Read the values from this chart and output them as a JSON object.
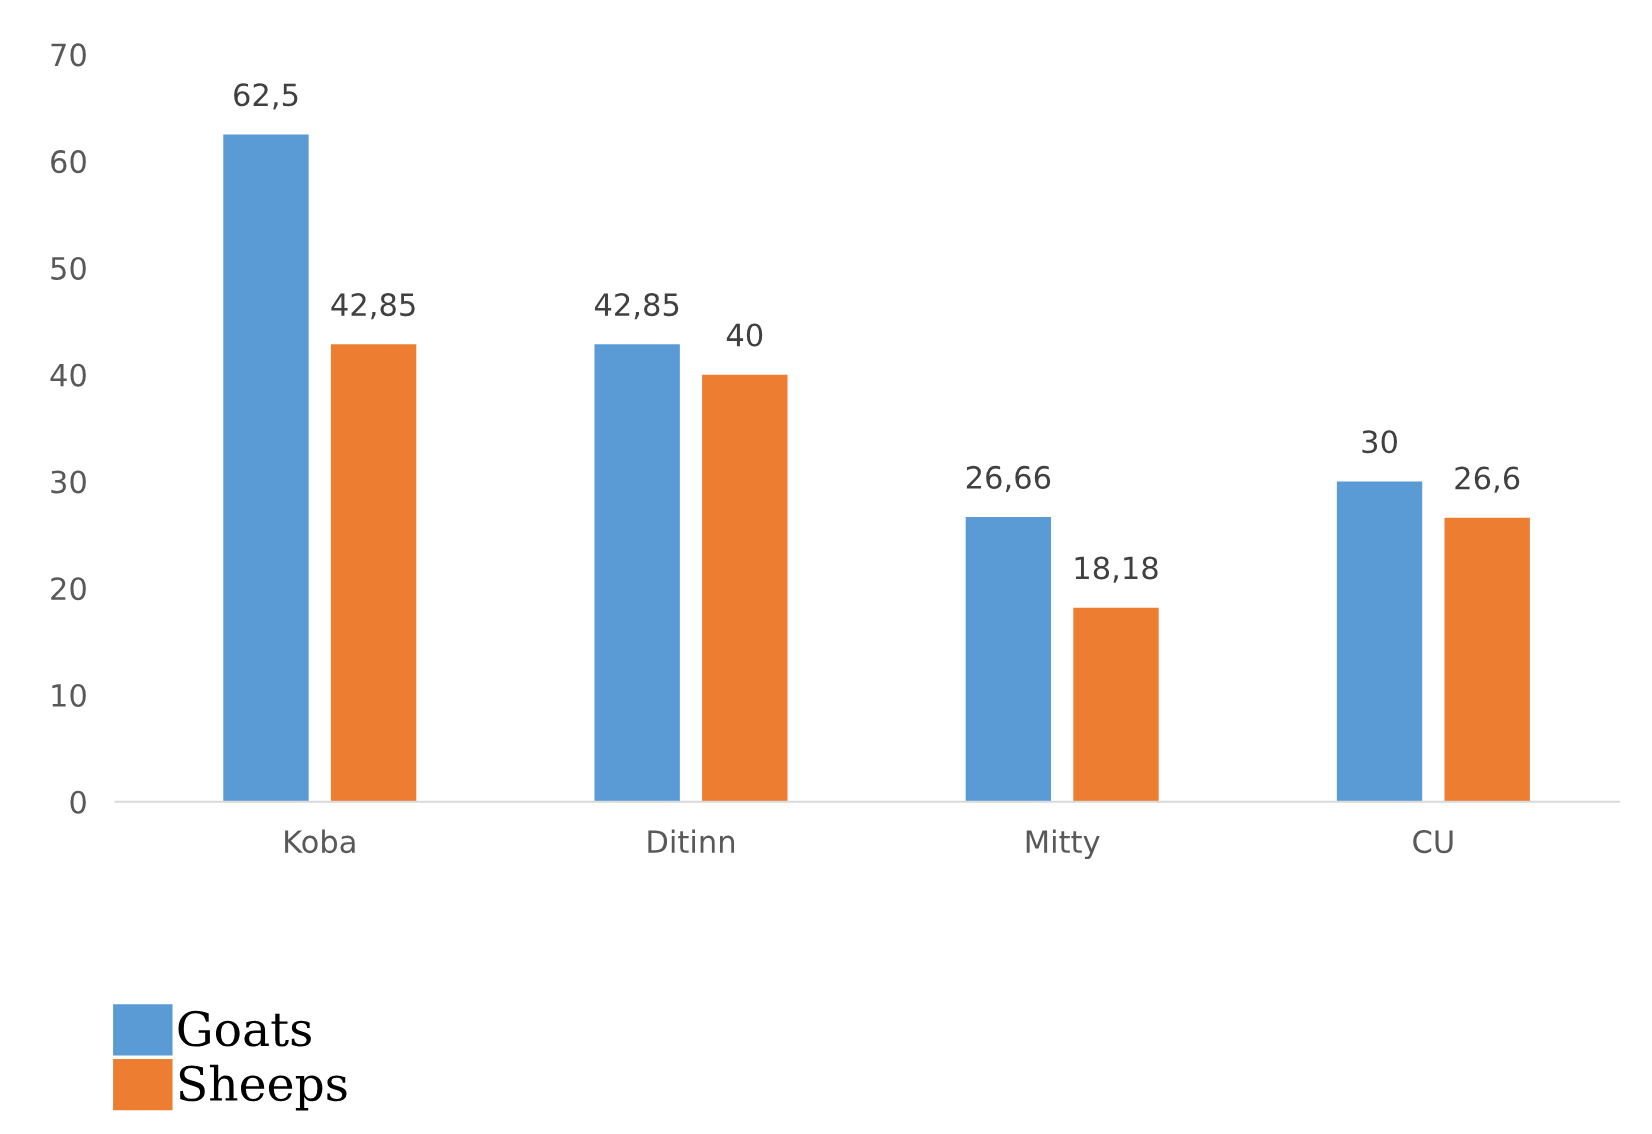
{
  "chart_data": {
    "type": "bar",
    "categories": [
      "Koba",
      "Ditinn",
      "Mitty",
      "CU"
    ],
    "series": [
      {
        "name": "Goats",
        "color": "#5b9bd5",
        "values": [
          62.5,
          42.85,
          26.66,
          30
        ],
        "value_labels": [
          "62,5",
          "42,85",
          "26,66",
          "30"
        ]
      },
      {
        "name": "Sheeps",
        "color": "#ed7d31",
        "values": [
          42.85,
          40,
          18.18,
          26.6
        ],
        "value_labels": [
          "42,85",
          "40",
          "18,18",
          "26,6"
        ]
      }
    ],
    "ylim": [
      0,
      70
    ],
    "yticks": [
      0,
      10,
      20,
      30,
      40,
      50,
      60,
      70
    ],
    "grid": false,
    "legend": "bottom left"
  }
}
